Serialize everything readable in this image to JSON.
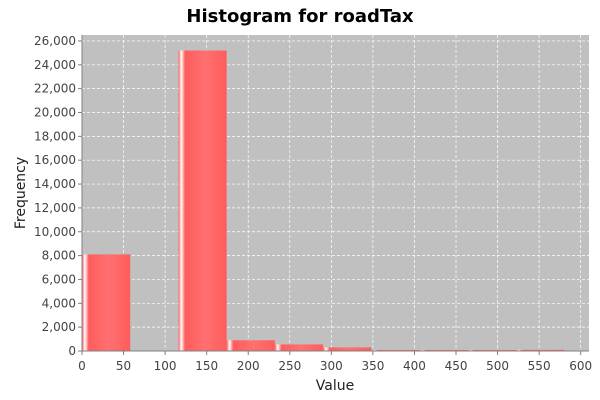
{
  "chart_data": {
    "type": "bar",
    "title": "Histogram for roadTax",
    "xlabel": "Value",
    "ylabel": "Frequency",
    "xlim": [
      0,
      610
    ],
    "ylim": [
      0,
      26500
    ],
    "x_ticks": [
      0,
      50,
      100,
      150,
      200,
      250,
      300,
      350,
      400,
      450,
      500,
      550,
      600
    ],
    "y_ticks": [
      0,
      2000,
      4000,
      6000,
      8000,
      10000,
      12000,
      14000,
      16000,
      18000,
      20000,
      22000,
      24000,
      26000
    ],
    "grid": true,
    "bins": [
      {
        "start": 0,
        "end": 58,
        "count": 8100
      },
      {
        "start": 58,
        "end": 116,
        "count": 0
      },
      {
        "start": 116,
        "end": 174,
        "count": 25200
      },
      {
        "start": 174,
        "end": 232,
        "count": 900
      },
      {
        "start": 232,
        "end": 290,
        "count": 550
      },
      {
        "start": 290,
        "end": 348,
        "count": 300
      },
      {
        "start": 348,
        "end": 406,
        "count": 50
      },
      {
        "start": 406,
        "end": 464,
        "count": 30
      },
      {
        "start": 464,
        "end": 522,
        "count": 20
      },
      {
        "start": 522,
        "end": 580,
        "count": 100
      }
    ],
    "bar_color": "#ff6666",
    "plot_background": "#c0c0c0"
  }
}
